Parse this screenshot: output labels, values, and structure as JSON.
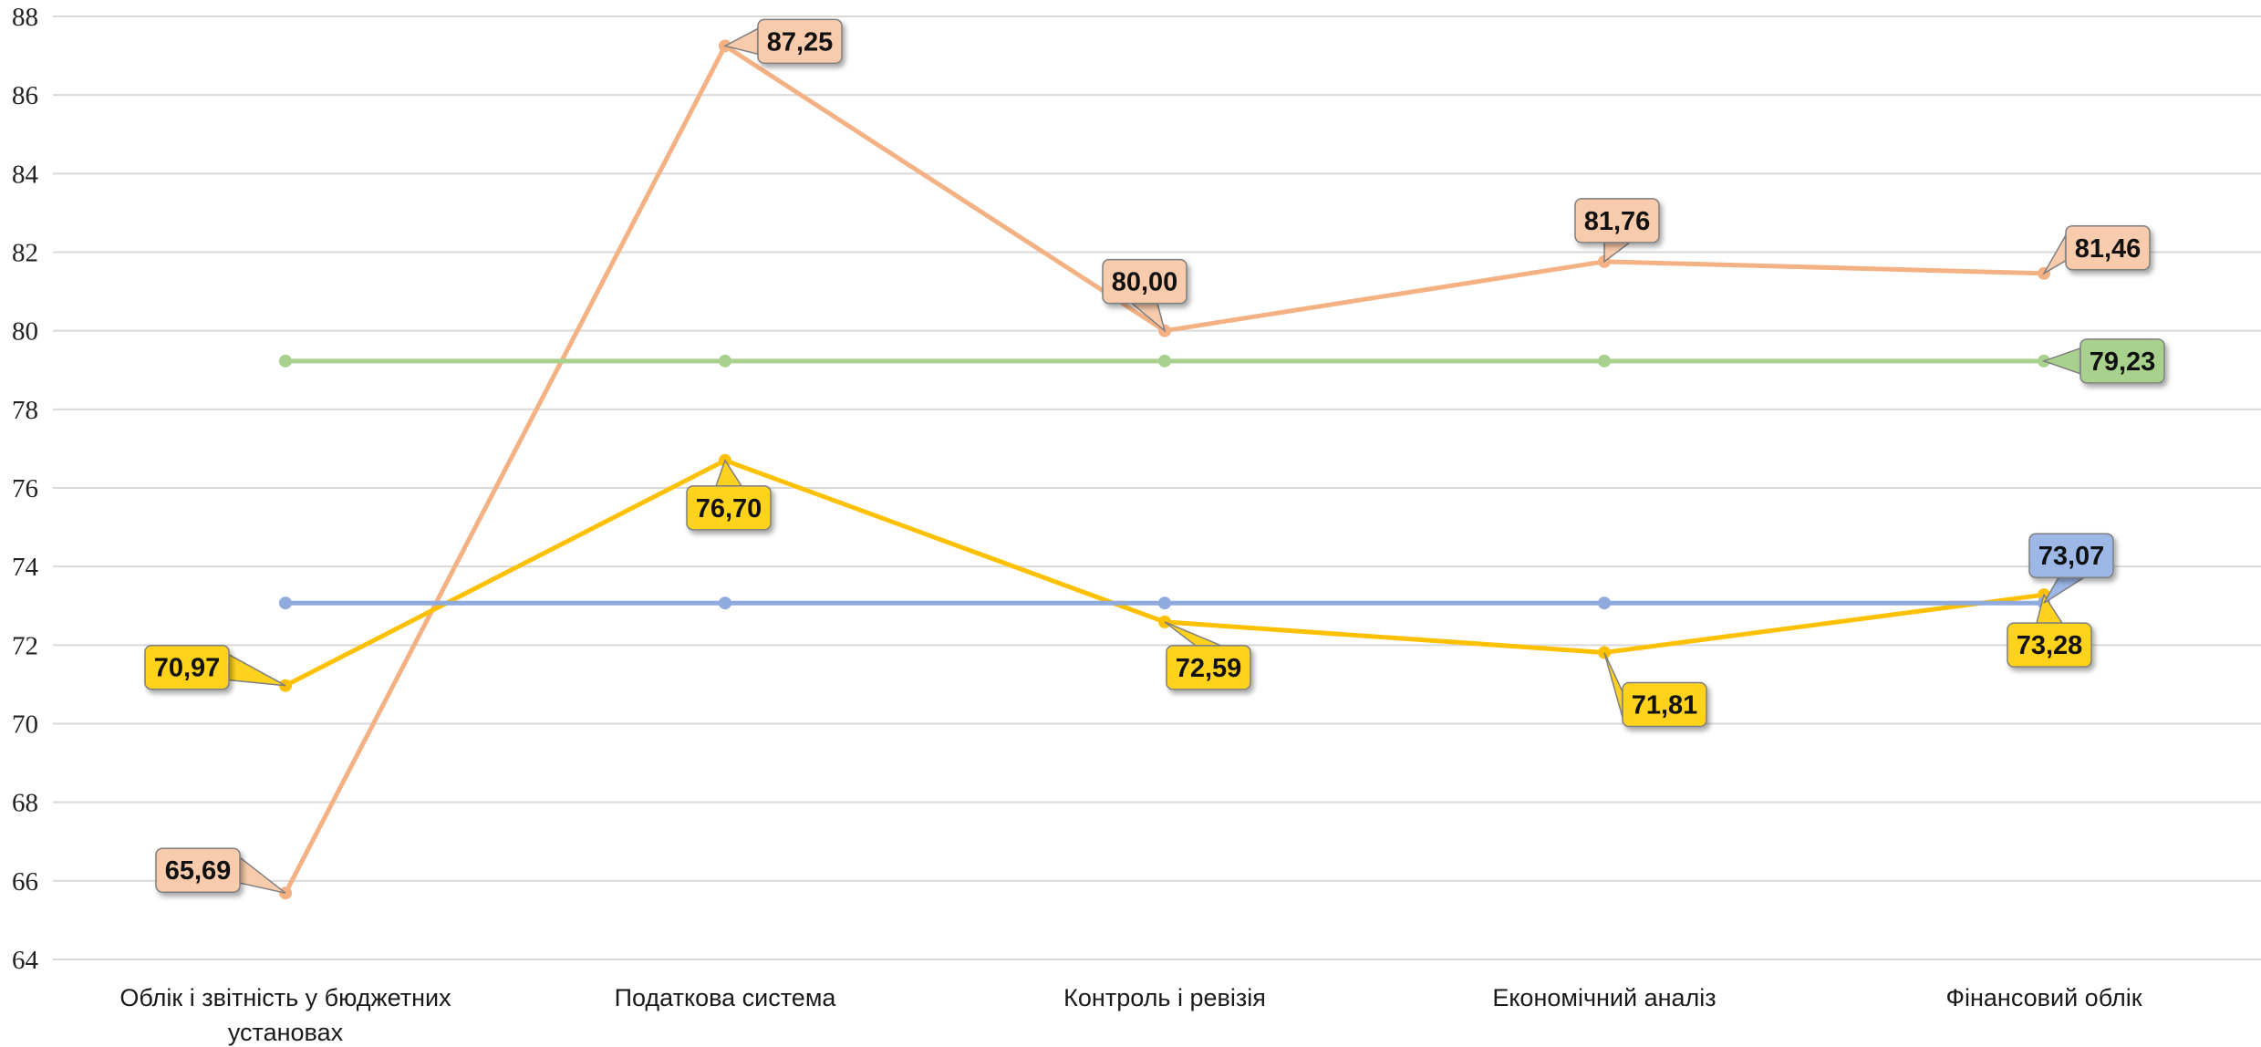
{
  "chart_data": {
    "type": "line",
    "title": "",
    "xlabel": "",
    "ylabel": "",
    "categories": [
      [
        "Облік і звітність у бюджетних",
        "установах"
      ],
      [
        "Податкова система"
      ],
      [
        "Контроль і ревізія"
      ],
      [
        "Економічний аналіз"
      ],
      [
        "Фінансовий облік"
      ]
    ],
    "ylim": [
      64,
      88
    ],
    "yticks": [
      "64",
      "66",
      "68",
      "70",
      "72",
      "74",
      "76",
      "78",
      "80",
      "82",
      "84",
      "86",
      "88"
    ],
    "grid": true,
    "legend": "none",
    "series": [
      {
        "color": "#f4b183",
        "label_fill": "#f8cbad",
        "values": [
          65.69,
          87.25,
          80.0,
          81.76,
          81.46
        ],
        "labels": [
          "65,69",
          "87,25",
          "80,00",
          "81,76",
          "81,46"
        ],
        "labeled_points": [
          0,
          1,
          2,
          3,
          4
        ]
      },
      {
        "color": "#a9d18e",
        "label_fill": "#a9d18e",
        "values": [
          79.23,
          79.23,
          79.23,
          79.23,
          79.23
        ],
        "labels": [
          "",
          "",
          "",
          "",
          "79,23"
        ],
        "labeled_points": [
          4
        ]
      },
      {
        "color": "#ffc000",
        "label_fill": "#ffd21f",
        "values": [
          70.97,
          76.7,
          72.59,
          71.81,
          73.28
        ],
        "labels": [
          "70,97",
          "76,70",
          "72,59",
          "71,81",
          "73,28"
        ],
        "labeled_points": [
          0,
          1,
          2,
          3,
          4
        ]
      },
      {
        "color": "#8faadc",
        "label_fill": "#9db7e6",
        "values": [
          73.07,
          73.07,
          73.07,
          73.07,
          73.07
        ],
        "labels": [
          "",
          "",
          "",
          "",
          "73,07"
        ],
        "labeled_points": [
          4
        ]
      }
    ]
  }
}
